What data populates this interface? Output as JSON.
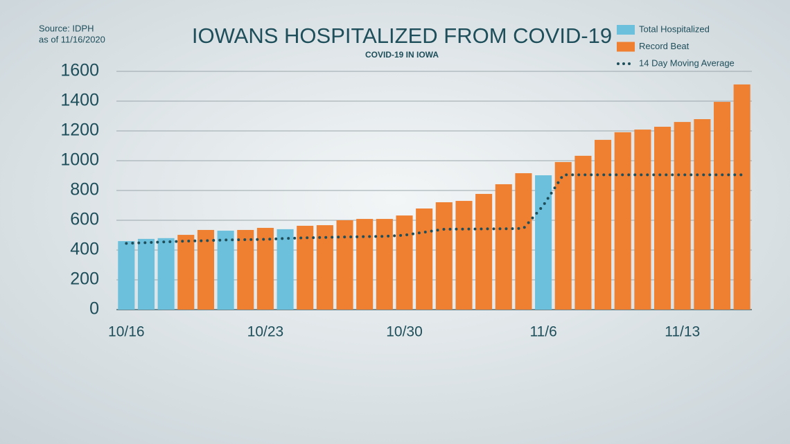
{
  "chart_data": {
    "type": "bar",
    "title": "IOWANS HOSPITALIZED FROM COVID-19",
    "subtitle": "COVID-19 IN IOWA",
    "source": [
      "Source: IDPH",
      "as of 11/16/2020"
    ],
    "categories": [
      "10/16",
      null,
      null,
      null,
      null,
      null,
      null,
      "10/23",
      null,
      null,
      null,
      null,
      null,
      null,
      "10/30",
      null,
      null,
      null,
      null,
      null,
      null,
      "11/6",
      null,
      null,
      null,
      null,
      null,
      null,
      "11/13",
      null,
      null,
      null
    ],
    "series": [
      {
        "name": "Total Hospitalized",
        "type": "bar",
        "color": "#6cc0dc",
        "values": [
          460,
          475,
          480,
          null,
          null,
          530,
          null,
          null,
          540,
          null,
          null,
          null,
          null,
          null,
          null,
          null,
          null,
          null,
          null,
          null,
          null,
          902,
          null,
          null,
          null,
          null,
          null,
          null,
          null,
          null,
          null,
          null
        ]
      },
      {
        "name": "Record Beat",
        "type": "bar",
        "color": "#ef7f31",
        "values": [
          null,
          null,
          null,
          502,
          535,
          null,
          535,
          549,
          null,
          563,
          567,
          600,
          609,
          609,
          632,
          679,
          721,
          730,
          777,
          842,
          916,
          null,
          991,
          1033,
          1140,
          1191,
          1209,
          1228,
          1260,
          1279,
          1395,
          1512
        ]
      },
      {
        "name": "14 Day Moving Average",
        "type": "line",
        "color": "#1d4e5a",
        "values": [
          445,
          450,
          455,
          460,
          463,
          468,
          470,
          472,
          478,
          482,
          485,
          488,
          490,
          492,
          500,
          520,
          540,
          541,
          542,
          543,
          545,
          700,
          905,
          905,
          905,
          905,
          905,
          905,
          905,
          905,
          905,
          905
        ]
      }
    ],
    "ylim": [
      0,
      1600
    ],
    "yticks": [
      0,
      200,
      400,
      600,
      800,
      1000,
      1200,
      1400,
      1600
    ],
    "grid": true,
    "legend": "top-right"
  }
}
